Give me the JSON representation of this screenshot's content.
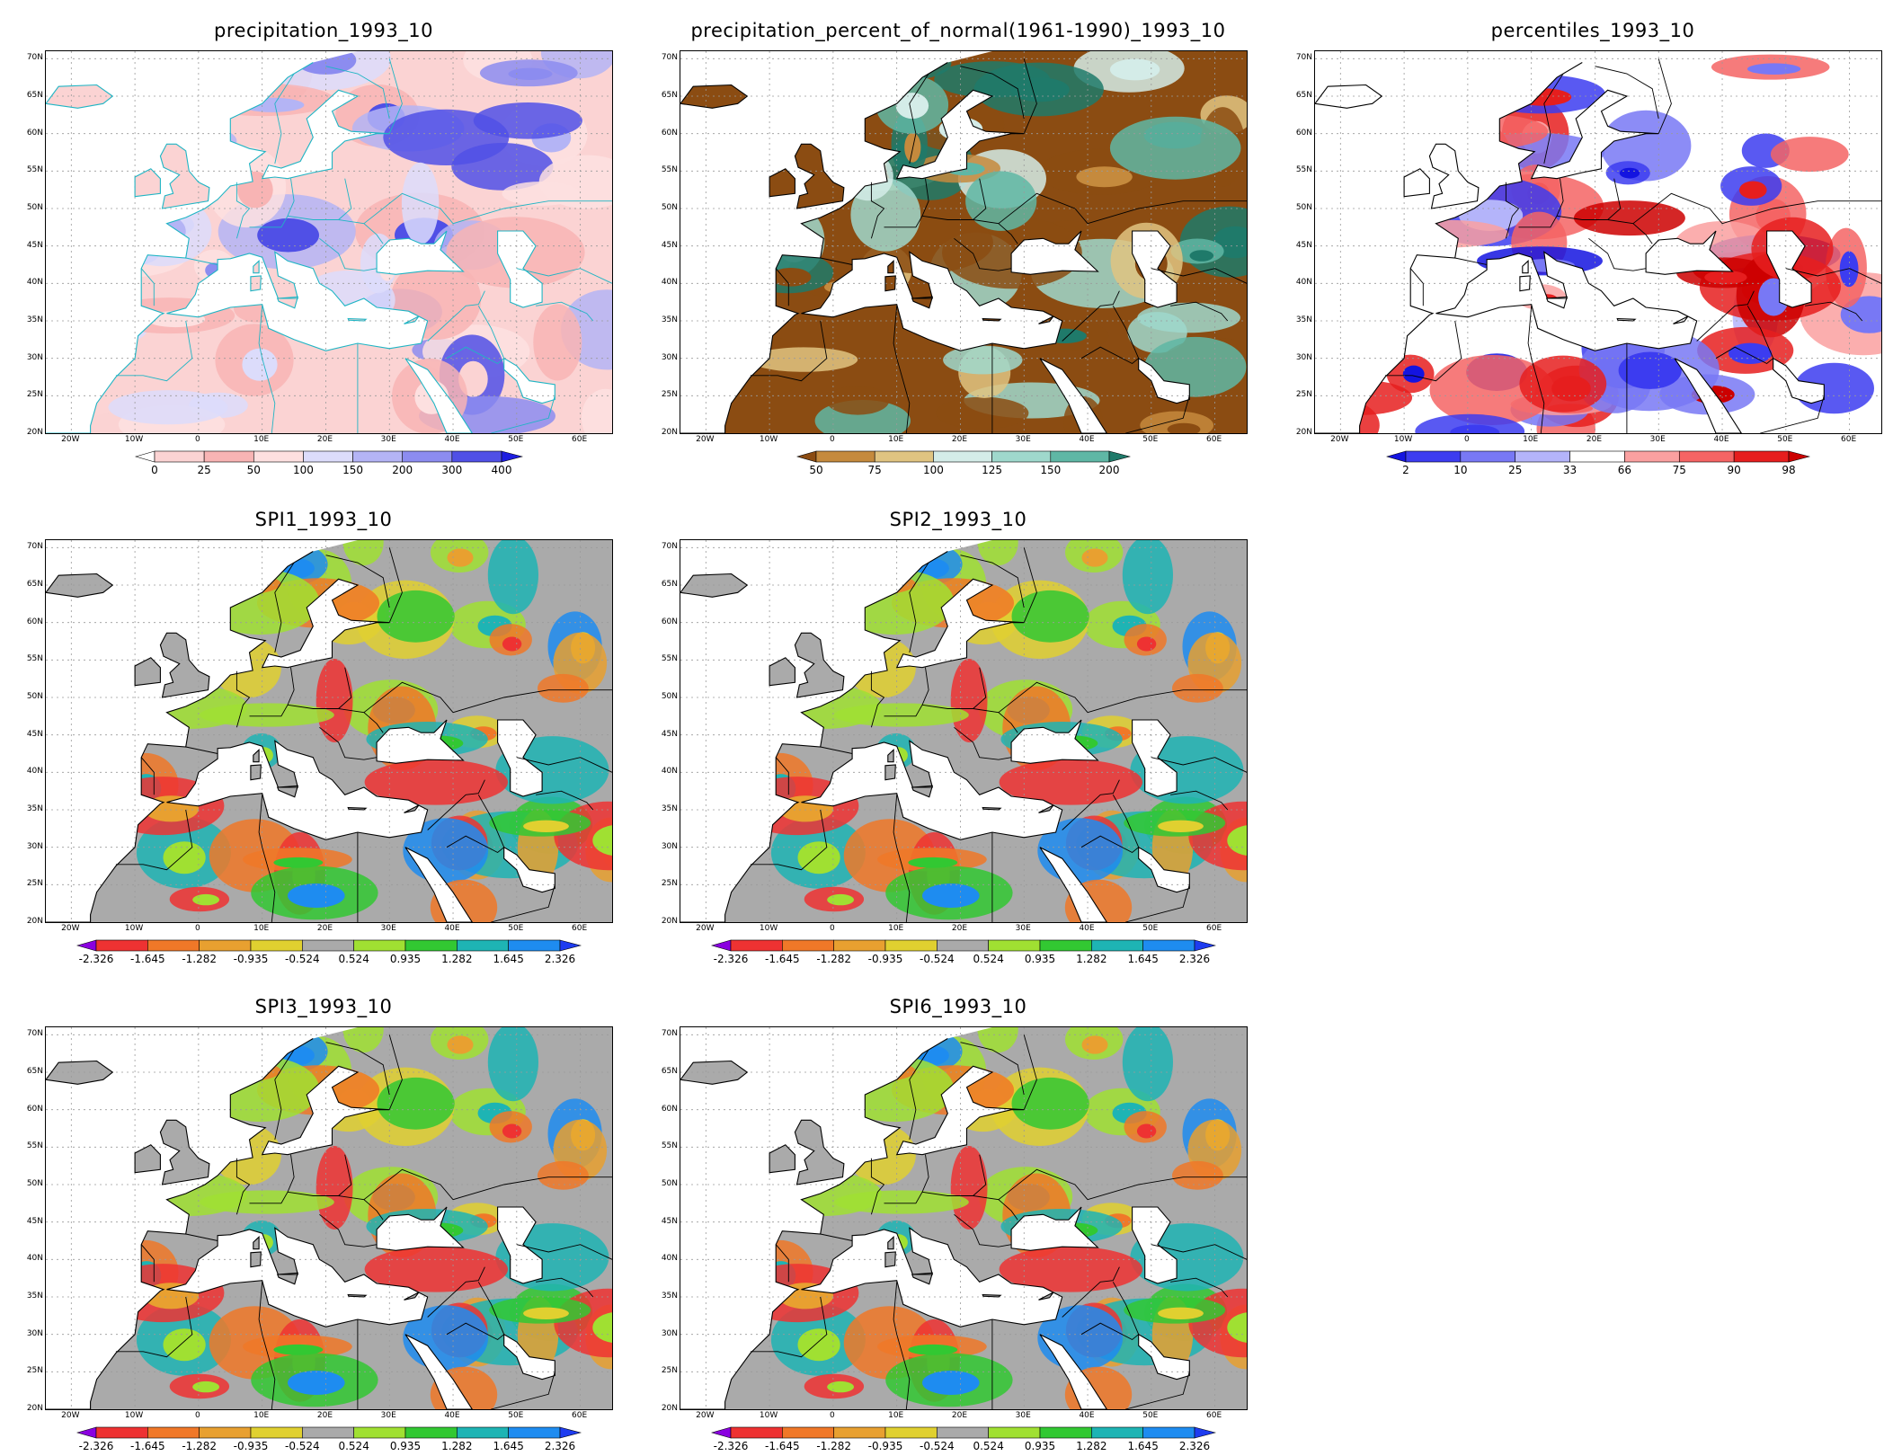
{
  "panels": [
    {
      "id": "precip",
      "title": "precipitation_1993_10",
      "scheme": "precip",
      "colorbar": {
        "labels": [
          "0",
          "25",
          "50",
          "100",
          "150",
          "200",
          "300",
          "400"
        ],
        "colors": [
          "#ffffff",
          "#fbd3d3",
          "#f8b4b4",
          "#fde0e0",
          "#dcdcfb",
          "#b4b4f5",
          "#8c8cf0",
          "#5050e6",
          "#1e1ee0"
        ]
      }
    },
    {
      "id": "pnorm",
      "title": "precipitation_percent_of_normal(1961-1990)_1993_10",
      "scheme": "pnorm",
      "colorbar": {
        "labels": [
          "50",
          "75",
          "100",
          "125",
          "150",
          "200"
        ],
        "colors": [
          "#8b4c12",
          "#c58a3d",
          "#e0c481",
          "#d4ece8",
          "#9fd8cc",
          "#5fb7a5",
          "#1f7a6a"
        ]
      }
    },
    {
      "id": "pct",
      "title": "percentiles_1993_10",
      "scheme": "pct",
      "colorbar": {
        "labels": [
          "2",
          "10",
          "25",
          "33",
          "66",
          "75",
          "90",
          "98"
        ],
        "colors": [
          "#1414e0",
          "#3c3cf0",
          "#7878f5",
          "#b4b4fa",
          "#ffffff",
          "#faa0a0",
          "#f56464",
          "#e61e1e",
          "#cc0000"
        ]
      }
    },
    {
      "id": "spi1",
      "title": "SPI1_1993_10",
      "scheme": "spi",
      "colorbar": {
        "labels": [
          "-2.326",
          "-1.645",
          "-1.282",
          "-0.935",
          "-0.524",
          "0.524",
          "0.935",
          "1.282",
          "1.645",
          "2.326"
        ],
        "colors": [
          "#8a00e0",
          "#ee3232",
          "#f07828",
          "#e8a030",
          "#e0d030",
          "#aaaaaa",
          "#a0e032",
          "#32c832",
          "#1eb4b4",
          "#1e8cf0",
          "#1e3cf0"
        ]
      }
    },
    {
      "id": "spi2",
      "title": "SPI2_1993_10",
      "scheme": "spi",
      "colorbar": {
        "labels": [
          "-2.326",
          "-1.645",
          "-1.282",
          "-0.935",
          "-0.524",
          "0.524",
          "0.935",
          "1.282",
          "1.645",
          "2.326"
        ],
        "colors": [
          "#8a00e0",
          "#ee3232",
          "#f07828",
          "#e8a030",
          "#e0d030",
          "#aaaaaa",
          "#a0e032",
          "#32c832",
          "#1eb4b4",
          "#1e8cf0",
          "#1e3cf0"
        ]
      }
    },
    {
      "id": "spi3",
      "title": "SPI3_1993_10",
      "scheme": "spi",
      "colorbar": {
        "labels": [
          "-2.326",
          "-1.645",
          "-1.282",
          "-0.935",
          "-0.524",
          "0.524",
          "0.935",
          "1.282",
          "1.645",
          "2.326"
        ],
        "colors": [
          "#8a00e0",
          "#ee3232",
          "#f07828",
          "#e8a030",
          "#e0d030",
          "#aaaaaa",
          "#a0e032",
          "#32c832",
          "#1eb4b4",
          "#1e8cf0",
          "#1e3cf0"
        ]
      }
    },
    {
      "id": "spi6",
      "title": "SPI6_1993_10",
      "scheme": "spi",
      "colorbar": {
        "labels": [
          "-2.326",
          "-1.645",
          "-1.282",
          "-0.935",
          "-0.524",
          "0.524",
          "0.935",
          "1.282",
          "1.645",
          "2.326"
        ],
        "colors": [
          "#8a00e0",
          "#ee3232",
          "#f07828",
          "#e8a030",
          "#e0d030",
          "#aaaaaa",
          "#a0e032",
          "#32c832",
          "#1eb4b4",
          "#1e8cf0",
          "#1e3cf0"
        ]
      }
    }
  ],
  "map_axes": {
    "lat_labels": [
      "70N",
      "65N",
      "60N",
      "55N",
      "50N",
      "45N",
      "40N",
      "35N",
      "30N",
      "25N",
      "20N"
    ],
    "lon_labels": [
      "20W",
      "10W",
      "0",
      "10E",
      "20E",
      "30E",
      "40E",
      "50E",
      "60E"
    ]
  }
}
